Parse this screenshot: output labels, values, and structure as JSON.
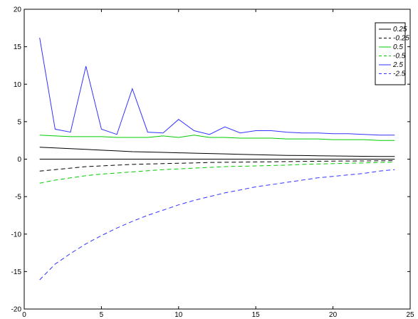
{
  "chart_data": {
    "type": "line",
    "title": "",
    "xlabel": "",
    "ylabel": "",
    "xlim": [
      0,
      25
    ],
    "ylim": [
      -20,
      20
    ],
    "xticks": [
      0,
      5,
      10,
      15,
      20,
      25
    ],
    "yticks": [
      -20,
      -15,
      -10,
      -5,
      0,
      5,
      10,
      15,
      20
    ],
    "grid": false,
    "legend_position": "top-right",
    "x": [
      1,
      2,
      3,
      4,
      5,
      6,
      7,
      8,
      9,
      10,
      11,
      12,
      13,
      14,
      15,
      16,
      17,
      18,
      19,
      20,
      21,
      22,
      23,
      24
    ],
    "zero_line": {
      "color": "#000000",
      "values": [
        0,
        0
      ]
    },
    "series": [
      {
        "name": "0.25",
        "color": "#000000",
        "dash": "solid",
        "values": [
          1.6,
          1.5,
          1.4,
          1.3,
          1.2,
          1.1,
          1.0,
          0.95,
          0.9,
          0.85,
          0.8,
          0.75,
          0.7,
          0.65,
          0.6,
          0.55,
          0.5,
          0.48,
          0.45,
          0.43,
          0.4,
          0.38,
          0.36,
          0.35
        ]
      },
      {
        "name": "-0.25",
        "color": "#000000",
        "dash": "dashed",
        "values": [
          -1.6,
          -1.4,
          -1.2,
          -1.0,
          -0.9,
          -0.8,
          -0.7,
          -0.65,
          -0.6,
          -0.55,
          -0.5,
          -0.45,
          -0.42,
          -0.4,
          -0.37,
          -0.35,
          -0.32,
          -0.3,
          -0.28,
          -0.26,
          -0.25,
          -0.24,
          -0.22,
          -0.2
        ]
      },
      {
        "name": "0.5",
        "color": "#00cc00",
        "dash": "solid",
        "values": [
          3.2,
          3.1,
          3.0,
          3.0,
          3.0,
          2.9,
          2.9,
          2.9,
          3.1,
          2.9,
          3.2,
          2.9,
          2.9,
          2.8,
          2.8,
          2.8,
          2.7,
          2.7,
          2.7,
          2.6,
          2.6,
          2.6,
          2.5,
          2.5
        ]
      },
      {
        "name": "-0.5",
        "color": "#00cc00",
        "dash": "dashed",
        "values": [
          -3.2,
          -2.8,
          -2.5,
          -2.2,
          -2.0,
          -1.85,
          -1.7,
          -1.55,
          -1.4,
          -1.3,
          -1.2,
          -1.1,
          -1.0,
          -0.95,
          -0.9,
          -0.85,
          -0.8,
          -0.7,
          -0.65,
          -0.6,
          -0.55,
          -0.5,
          -0.45,
          -0.4
        ]
      },
      {
        "name": "2.5",
        "color": "#3333ff",
        "dash": "solid",
        "values": [
          16.2,
          4.0,
          3.6,
          12.4,
          4.0,
          3.3,
          9.4,
          3.6,
          3.5,
          5.3,
          3.8,
          3.3,
          4.3,
          3.5,
          3.8,
          3.8,
          3.6,
          3.5,
          3.5,
          3.4,
          3.4,
          3.3,
          3.2,
          3.2
        ]
      },
      {
        "name": "-2.5",
        "color": "#3333ff",
        "dash": "dashed",
        "values": [
          -16.1,
          -14.0,
          -12.6,
          -11.3,
          -10.2,
          -9.2,
          -8.3,
          -7.5,
          -6.8,
          -6.1,
          -5.5,
          -5.0,
          -4.5,
          -4.1,
          -3.7,
          -3.4,
          -3.1,
          -2.8,
          -2.5,
          -2.3,
          -2.1,
          -1.9,
          -1.6,
          -1.4
        ]
      }
    ]
  }
}
